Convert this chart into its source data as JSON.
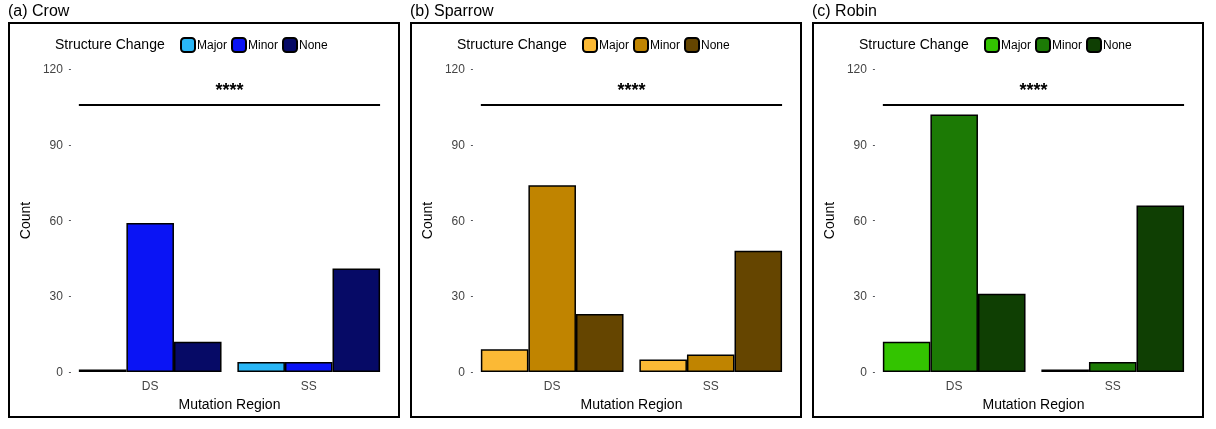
{
  "chart_data": [
    {
      "type": "bar",
      "title": "(a) Crow",
      "xlabel": "Mutation Region",
      "ylabel": "Count",
      "legend_title": "Structure Change",
      "categories": [
        "DS",
        "SS"
      ],
      "ylim": [
        0,
        120
      ],
      "yticks": [
        0,
        30,
        60,
        90,
        120
      ],
      "grid": false,
      "legend": "top",
      "ref_lines": [
        {
          "axis": "y",
          "value": 106,
          "label": "****"
        }
      ],
      "series": [
        {
          "name": "Major",
          "color": "#29b6f6",
          "values": [
            1,
            4
          ]
        },
        {
          "name": "Minor",
          "color": "#0a14f5",
          "values": [
            59,
            4
          ]
        },
        {
          "name": "None",
          "color": "#060a66",
          "values": [
            12,
            41
          ]
        }
      ]
    },
    {
      "type": "bar",
      "title": "(b) Sparrow",
      "xlabel": "Mutation Region",
      "ylabel": "Count",
      "legend_title": "Structure Change",
      "categories": [
        "DS",
        "SS"
      ],
      "ylim": [
        0,
        120
      ],
      "yticks": [
        0,
        30,
        60,
        90,
        120
      ],
      "grid": false,
      "legend": "top",
      "ref_lines": [
        {
          "axis": "y",
          "value": 106,
          "label": "****"
        }
      ],
      "series": [
        {
          "name": "Major",
          "color": "#fbb935",
          "values": [
            9,
            5
          ]
        },
        {
          "name": "Minor",
          "color": "#c08400",
          "values": [
            74,
            7
          ]
        },
        {
          "name": "None",
          "color": "#654500",
          "values": [
            23,
            48
          ]
        }
      ]
    },
    {
      "type": "bar",
      "title": "(c) Robin",
      "xlabel": "Mutation Region",
      "ylabel": "Count",
      "legend_title": "Structure Change",
      "categories": [
        "DS",
        "SS"
      ],
      "ylim": [
        0,
        120
      ],
      "yticks": [
        0,
        30,
        60,
        90,
        120
      ],
      "grid": false,
      "legend": "top",
      "ref_lines": [
        {
          "axis": "y",
          "value": 106,
          "label": "****"
        }
      ],
      "series": [
        {
          "name": "Major",
          "color": "#33c400",
          "values": [
            12,
            1
          ]
        },
        {
          "name": "Minor",
          "color": "#1c7a05",
          "values": [
            102,
            4
          ]
        },
        {
          "name": "None",
          "color": "#0f3f03",
          "values": [
            31,
            66
          ]
        }
      ]
    }
  ]
}
